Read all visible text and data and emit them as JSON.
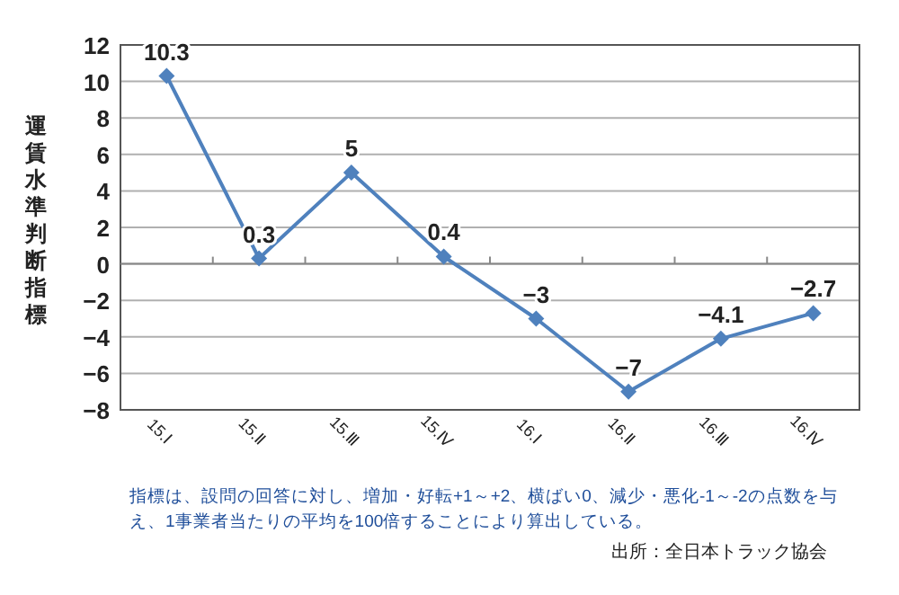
{
  "chart_data": {
    "type": "line",
    "ylabel": "運賃水準判断指標",
    "categories": [
      "15.Ⅰ",
      "15.Ⅱ",
      "15.Ⅲ",
      "15.Ⅳ",
      "16.Ⅰ",
      "16.Ⅱ",
      "16.Ⅲ",
      "16.Ⅳ"
    ],
    "series": [
      {
        "color": "#4f81bd",
        "values": [
          10.3,
          0.3,
          5,
          0.4,
          -3,
          -7,
          -4.1,
          -2.7
        ]
      }
    ],
    "ylim": [
      -8,
      12
    ],
    "yticks": [
      -8,
      -6,
      -4,
      -2,
      0,
      2,
      4,
      6,
      8,
      10,
      12
    ],
    "grid": "y",
    "marker": "diamond",
    "line_style": "solid",
    "data_labels": true,
    "annotations": [
      "指標は、設問の回答に対し、増加・好転+1～+2、横ばい0、減少・悪化-1～-2の点数を与え、1事業者当たりの平均を100倍することにより算出している。",
      "出所：全日本トラック協会"
    ]
  }
}
